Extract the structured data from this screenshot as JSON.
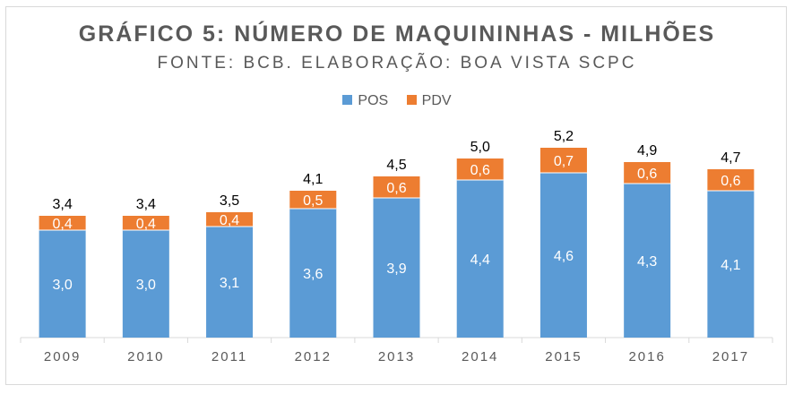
{
  "chart_data": {
    "type": "bar",
    "stacked": true,
    "title": "GRÁFICO 5: NÚMERO DE MAQUININHAS - MILHÕES",
    "subtitle": "FONTE: BCB. ELABORAÇÃO: BOA VISTA SCPC",
    "categories": [
      "2009",
      "2010",
      "2011",
      "2012",
      "2013",
      "2014",
      "2015",
      "2016",
      "2017"
    ],
    "series": [
      {
        "name": "POS",
        "color": "#5b9bd5",
        "values": [
          3.0,
          3.0,
          3.1,
          3.6,
          3.9,
          4.4,
          4.6,
          4.3,
          4.1
        ],
        "labels": [
          "3,0",
          "3,0",
          "3,1",
          "3,6",
          "3,9",
          "4,4",
          "4,6",
          "4,3",
          "4,1"
        ]
      },
      {
        "name": "PDV",
        "color": "#ed7d31",
        "values": [
          0.4,
          0.4,
          0.4,
          0.5,
          0.6,
          0.6,
          0.7,
          0.6,
          0.6
        ],
        "labels": [
          "0,4",
          "0,4",
          "0,4",
          "0,5",
          "0,6",
          "0,6",
          "0,7",
          "0,6",
          "0,6"
        ]
      }
    ],
    "totals": [
      3.4,
      3.4,
      3.5,
      4.1,
      4.5,
      5.0,
      5.2,
      4.9,
      4.7
    ],
    "total_labels": [
      "3,4",
      "3,4",
      "3,5",
      "4,1",
      "4,5",
      "5,0",
      "5,2",
      "4,9",
      "4,7"
    ],
    "ylim": [
      0,
      6
    ],
    "grid": false,
    "legend_position": "top"
  }
}
